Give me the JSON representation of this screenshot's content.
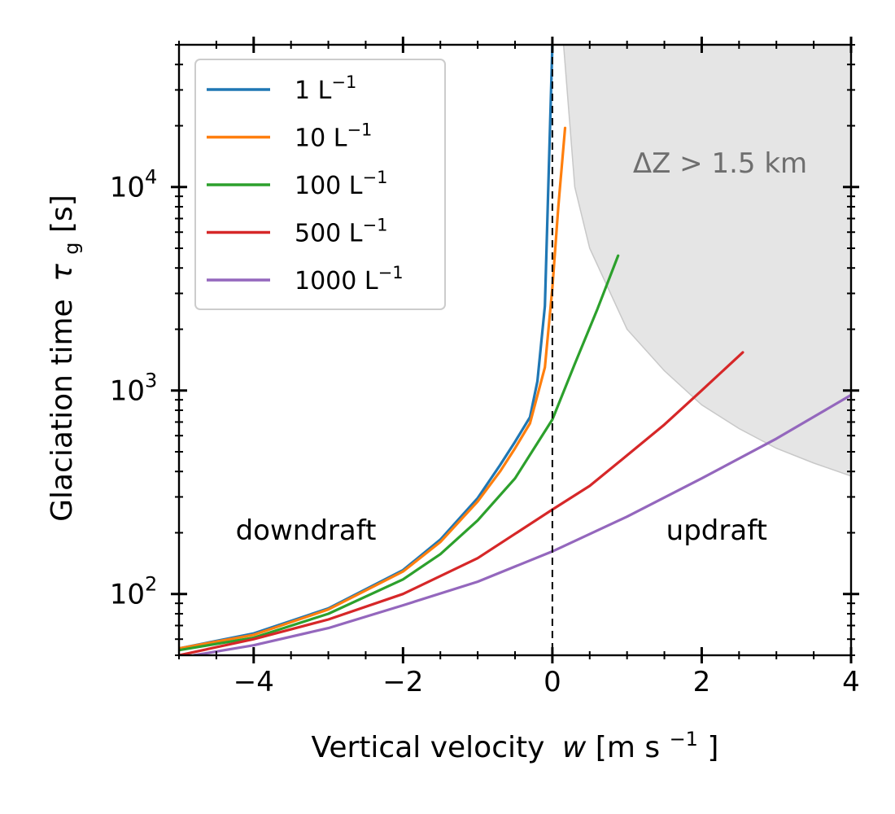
{
  "chart_data": {
    "type": "line",
    "xlabel": "Vertical velocity",
    "xlabel_symbol": "w",
    "xlabel_unit_prefix": " [m s",
    "xlabel_unit_exp": "−1",
    "xlabel_unit_suffix": "]",
    "ylabel": "Glaciation time",
    "ylabel_symbol": "τ",
    "ylabel_subscript": "g",
    "ylabel_unit": " [s]",
    "xlim": [
      -5,
      4
    ],
    "ylim": [
      50,
      50000
    ],
    "yscale": "log",
    "x_ticks": [
      -4,
      -2,
      0,
      2,
      4
    ],
    "x_tick_labels": [
      "−4",
      "−2",
      "0",
      "2",
      "4"
    ],
    "y_ticks": [
      100,
      1000,
      10000
    ],
    "y_tick_base": "10",
    "y_tick_exps": [
      "2",
      "3",
      "4"
    ],
    "legend_position": "top-left",
    "reference_line": {
      "x": 0,
      "style": "dashed"
    },
    "series": [
      {
        "name": "1 L",
        "exp": "−1",
        "color": "#1f77b4",
        "x": [
          -5,
          -4,
          -3,
          -2,
          -1.5,
          -1,
          -0.7,
          -0.5,
          -0.3,
          -0.2,
          -0.1,
          0
        ],
        "y": [
          54,
          64,
          85,
          131,
          185,
          296,
          430,
          560,
          740,
          1110,
          2600,
          50000
        ]
      },
      {
        "name": "10 L",
        "exp": "−1",
        "color": "#ff7f0e",
        "x": [
          -5,
          -4,
          -3,
          -2,
          -1.5,
          -1,
          -0.7,
          -0.5,
          -0.3,
          -0.1,
          0,
          0.08,
          0.17
        ],
        "y": [
          54,
          63,
          84,
          129,
          180,
          285,
          400,
          520,
          690,
          1300,
          3200,
          8000,
          19500
        ]
      },
      {
        "name": "100 L",
        "exp": "−1",
        "color": "#2ca02c",
        "x": [
          -5,
          -4,
          -3,
          -2,
          -1.5,
          -1,
          -0.5,
          0,
          0.3,
          0.6,
          0.88
        ],
        "y": [
          53,
          61,
          80,
          118,
          157,
          230,
          370,
          720,
          1350,
          2500,
          4600
        ]
      },
      {
        "name": "500 L",
        "exp": "−1",
        "color": "#d62728",
        "x": [
          -5,
          -4,
          -3,
          -2,
          -1,
          0,
          0.5,
          1,
          1.5,
          2,
          2.55
        ],
        "y": [
          50,
          60,
          75,
          100,
          150,
          260,
          340,
          480,
          680,
          1000,
          1540
        ]
      },
      {
        "name": "1000 L",
        "exp": "−1",
        "color": "#9467bd",
        "x": [
          -4.8,
          -4,
          -3,
          -2,
          -1,
          0,
          1,
          2,
          3,
          4
        ],
        "y": [
          50,
          56,
          68,
          88,
          115,
          162,
          240,
          370,
          580,
          950
        ]
      }
    ],
    "shaded_region": {
      "label": "ΔZ > 1.5 km",
      "color": "#e5e5e5",
      "boundary_x": [
        0.15,
        0.3,
        0.5,
        1,
        1.5,
        2,
        2.5,
        3,
        3.5,
        4
      ],
      "boundary_y": [
        50000,
        10000,
        5000,
        2000,
        1250,
        850,
        650,
        520,
        440,
        380
      ]
    },
    "annotations": [
      {
        "text": "downdraft",
        "x": -3.3,
        "y": 190
      },
      {
        "text": "updraft",
        "x": 2.2,
        "y": 190
      }
    ]
  }
}
